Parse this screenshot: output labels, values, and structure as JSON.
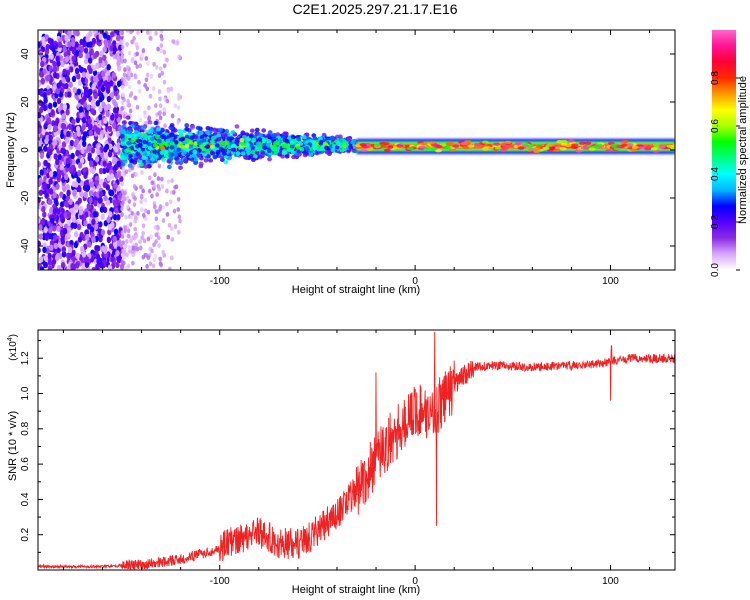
{
  "title": "C2E1.2025.297.21.17.E16",
  "chart_data": [
    {
      "type": "heatmap",
      "name": "spectrogram",
      "xlabel": "Height of straight line (km)",
      "ylabel": "Frequency (Hz)",
      "xlim": [
        -193,
        133
      ],
      "ylim": [
        -50,
        50
      ],
      "xticks": [
        -100,
        0,
        100
      ],
      "yticks": [
        -40,
        -20,
        0,
        20,
        40
      ],
      "colorbar": {
        "label": "Normalized spectral amplitude",
        "range": [
          0,
          1
        ],
        "ticks": [
          "0.0",
          "0.2",
          "0.4",
          "0.6",
          "0.8"
        ],
        "tick_values": [
          0.0,
          0.2,
          0.4,
          0.6,
          0.8
        ],
        "colors": [
          "#ffffff",
          "#d9a6ff",
          "#8a2be2",
          "#5500ff",
          "#0000ff",
          "#00b7ff",
          "#00ffff",
          "#00ff7f",
          "#00ff00",
          "#aaff00",
          "#ffff00",
          "#ff9900",
          "#ff2a00",
          "#ff0033",
          "#ff1493",
          "#ff66cc"
        ]
      },
      "features": [
        {
          "region": "scattered noise",
          "x_range": [
            -193,
            -150
          ],
          "freq_range": [
            -50,
            50
          ],
          "amplitude": 0.15
        },
        {
          "region": "sparse noise",
          "x_range": [
            -150,
            -120
          ],
          "freq_range": [
            -50,
            50
          ],
          "amplitude": 0.05
        },
        {
          "region": "broad band",
          "x_range": [
            -150,
            -30
          ],
          "freq_center": 2,
          "freq_halfwidth_start": 10,
          "freq_halfwidth_end": 3,
          "amplitude": 0.35
        },
        {
          "region": "narrow line",
          "x_range": [
            -30,
            133
          ],
          "freq_center": 1.5,
          "freq_halfwidth": 1.2,
          "amplitude": 0.95
        }
      ]
    },
    {
      "type": "line",
      "name": "snr",
      "xlabel": "Height of straight line (km)",
      "ylabel": "SNR (10 * v/v)",
      "y_multiplier": "(x10^4)",
      "y_multiplier_base": "(x10",
      "y_multiplier_exp": "4",
      "y_multiplier_close": ")",
      "xlim": [
        -193,
        133
      ],
      "ylim": [
        0,
        1.36
      ],
      "xticks": [
        -100,
        0,
        100
      ],
      "yticks": [
        "0.2",
        "0.4",
        "0.6",
        "0.8",
        "1.0",
        "1.2"
      ],
      "ytick_values": [
        0.2,
        0.4,
        0.6,
        0.8,
        1.0,
        1.2
      ],
      "color": "#ee2222",
      "trend": {
        "x": [
          -193,
          -160,
          -140,
          -120,
          -100,
          -90,
          -80,
          -70,
          -60,
          -50,
          -40,
          -30,
          -20,
          -10,
          0,
          10,
          20,
          30,
          40,
          60,
          80,
          95,
          100,
          110,
          120,
          133
        ],
        "y": [
          0.02,
          0.02,
          0.03,
          0.06,
          0.12,
          0.18,
          0.22,
          0.15,
          0.15,
          0.22,
          0.32,
          0.45,
          0.62,
          0.78,
          0.9,
          0.9,
          1.05,
          1.15,
          1.16,
          1.15,
          1.16,
          1.17,
          1.18,
          1.2,
          1.2,
          1.2
        ]
      },
      "spikes": [
        {
          "x": -20,
          "y": 1.12
        },
        {
          "x": 10,
          "y": 1.35
        },
        {
          "x": 11,
          "y": 0.25
        },
        {
          "x": 100,
          "y": 0.96
        },
        {
          "x": 100.5,
          "y": 1.27
        }
      ]
    }
  ]
}
